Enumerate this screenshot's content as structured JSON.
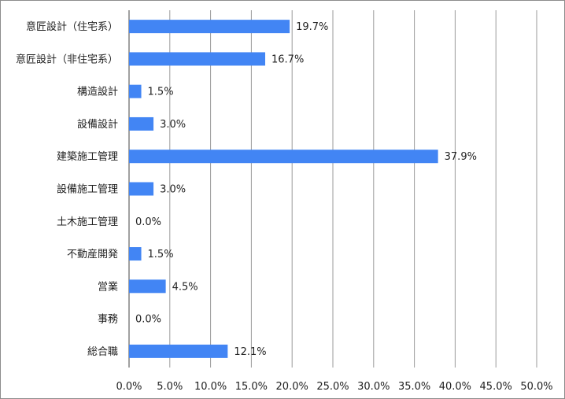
{
  "chart_data": {
    "type": "bar",
    "orientation": "horizontal",
    "title": "",
    "xlabel": "",
    "ylabel": "",
    "categories": [
      "意匠設計（住宅系）",
      "意匠設計（非住宅系）",
      "構造設計",
      "設備設計",
      "建築施工管理",
      "設備施工管理",
      "土木施工管理",
      "不動産開発",
      "営業",
      "事務",
      "総合職"
    ],
    "values": [
      19.7,
      16.7,
      1.5,
      3.0,
      37.9,
      3.0,
      0.0,
      1.5,
      4.5,
      0.0,
      12.1
    ],
    "value_labels": [
      "19.7%",
      "16.7%",
      "1.5%",
      "3.0%",
      "37.9%",
      "3.0%",
      "0.0%",
      "1.5%",
      "4.5%",
      "0.0%",
      "12.1%"
    ],
    "xlim": [
      0,
      50
    ],
    "xticks": [
      0,
      5,
      10,
      15,
      20,
      25,
      30,
      35,
      40,
      45,
      50
    ],
    "xtick_labels": [
      "0.0%",
      "5.0%",
      "10.0%",
      "15.0%",
      "20.0%",
      "25.0%",
      "30.0%",
      "35.0%",
      "40.0%",
      "45.0%",
      "50.0%"
    ],
    "grid": true,
    "legend": "none",
    "bar_color": "#4285F4",
    "grid_color": "#9a9a9a"
  }
}
